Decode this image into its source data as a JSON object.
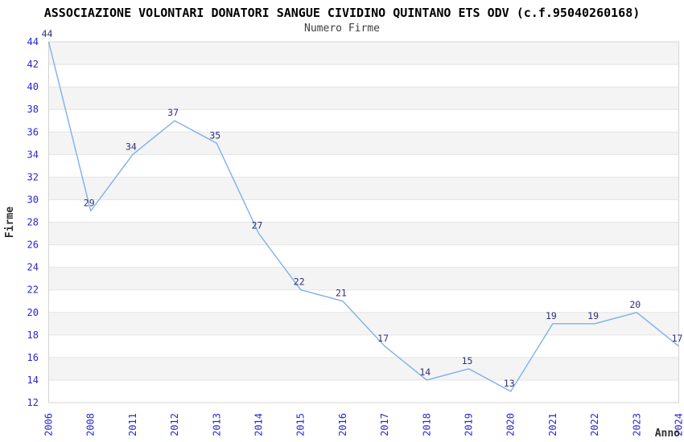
{
  "chart_data": {
    "type": "line",
    "title": "ASSOCIAZIONE VOLONTARI DONATORI SANGUE CIVIDINO QUINTANO ETS ODV (c.f.95040260168)",
    "subtitle": "Numero Firme",
    "xlabel": "Anno",
    "ylabel": "Firme",
    "categories": [
      "2006",
      "2008",
      "2011",
      "2012",
      "2013",
      "2014",
      "2015",
      "2016",
      "2017",
      "2018",
      "2019",
      "2020",
      "2021",
      "2022",
      "2023",
      "2024"
    ],
    "values": [
      44,
      29,
      34,
      37,
      35,
      27,
      22,
      21,
      17,
      14,
      15,
      13,
      19,
      19,
      20,
      17
    ],
    "ylim": [
      12,
      44
    ],
    "ytick_step": 2,
    "grid": true,
    "alternating_bands": true,
    "legend_position": "none",
    "marker": "none",
    "colors": {
      "line": "#7fb0e8",
      "data_label": "#30307a",
      "tick_label": "#2626d2",
      "band_fill": "#f4f4f4",
      "gridline": "#e4e4e4",
      "frame": "#d4d4d4",
      "axis_title": "#303030",
      "title": "#000000",
      "subtitle": "#3f3f3f",
      "background": "#ffffff"
    }
  }
}
